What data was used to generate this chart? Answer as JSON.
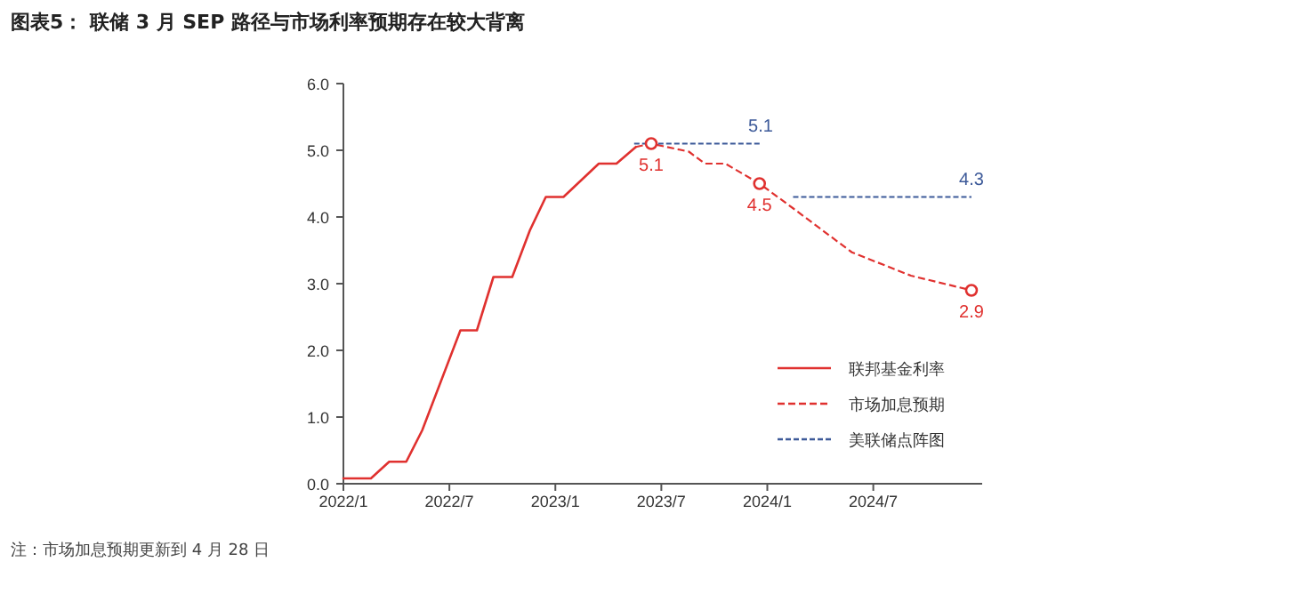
{
  "chart_data": {
    "type": "line",
    "title": "图表5：  联储 3 月 SEP 路径与市场利率预期存在较大背离",
    "xlim": [
      "2022-01-01",
      "2025-01-06"
    ],
    "xticks": [
      {
        "value": "2022-01-01",
        "label": "2022/1"
      },
      {
        "value": "2022-07-01",
        "label": "2022/7"
      },
      {
        "value": "2023-01-01",
        "label": "2023/1"
      },
      {
        "value": "2023-07-01",
        "label": "2023/7"
      },
      {
        "value": "2024-01-01",
        "label": "2024/1"
      },
      {
        "value": "2024-07-01",
        "label": "2024/7"
      }
    ],
    "ylim": [
      0,
      6
    ],
    "yticks": [
      {
        "value": 0,
        "label": "0.0"
      },
      {
        "value": 1,
        "label": "1.0"
      },
      {
        "value": 2,
        "label": "2.0"
      },
      {
        "value": 3,
        "label": "3.0"
      },
      {
        "value": 4,
        "label": "4.0"
      },
      {
        "value": 5,
        "label": "5.0"
      },
      {
        "value": 6,
        "label": "6.0"
      }
    ],
    "grid": false,
    "legend": "bottom right",
    "series": [
      {
        "name": "联邦基金利率",
        "line_style": "solid",
        "color": "#e0312f",
        "x": [
          "2022-01-01",
          "2022-02-18",
          "2022-03-19",
          "2022-04-18",
          "2022-05-15",
          "2022-07-20",
          "2022-08-18",
          "2022-09-16",
          "2022-10-18",
          "2022-11-18",
          "2022-12-15",
          "2023-01-15",
          "2023-03-15",
          "2023-04-15",
          "2023-05-18"
        ],
        "values": [
          0.08,
          0.08,
          0.33,
          0.33,
          0.8,
          2.3,
          2.3,
          3.1,
          3.1,
          3.8,
          4.3,
          4.3,
          4.8,
          4.8,
          5.05
        ]
      },
      {
        "name": "市场加息预期",
        "line_style": "dashed",
        "color": "#e0312f",
        "x": [
          "2023-05-18",
          "2023-06-14",
          "2023-08-18",
          "2023-09-15",
          "2023-10-20",
          "2023-12-18",
          "2024-02-15",
          "2024-05-25",
          "2024-09-05",
          "2024-12-18"
        ],
        "values": [
          5.05,
          5.1,
          4.98,
          4.8,
          4.8,
          4.5,
          4.13,
          3.47,
          3.12,
          2.9
        ]
      },
      {
        "name": "美联储点阵图",
        "line_style": "dotted",
        "color": "#3d5a99",
        "x": [
          "2023-05-15",
          "2023-12-20",
          "2024-01-15",
          "2024-02-15",
          "2024-12-18"
        ],
        "values": [
          5.1,
          5.1,
          null,
          4.3,
          4.3
        ]
      },
      {
        "type": "scatter",
        "marker": "circle",
        "color": "#e0312f",
        "x": [
          "2023-06-14",
          "2023-12-18",
          "2024-12-18"
        ],
        "values": [
          5.1,
          4.5,
          2.9
        ]
      }
    ],
    "annotations": [
      {
        "text": "5.1",
        "x": "2023-06-14",
        "y": 5.1
      },
      {
        "text": "4.5",
        "x": "2023-12-18",
        "y": 4.5
      },
      {
        "text": "2.9",
        "x": "2024-12-18",
        "y": 2.9
      },
      {
        "text": "5.1",
        "x": "2023-12-20",
        "y": 5.1
      },
      {
        "text": "4.3",
        "x": "2024-12-18",
        "y": 4.3
      },
      "注：市场加息预期更新到 4 月 28 日"
    ]
  }
}
